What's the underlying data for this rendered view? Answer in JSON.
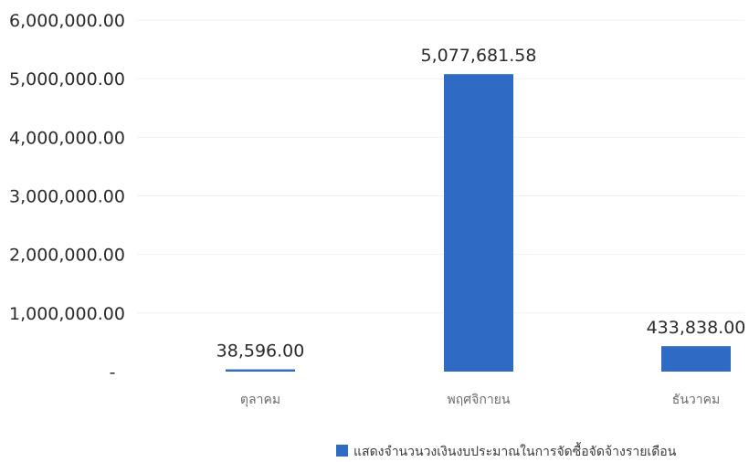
{
  "chart_data": {
    "type": "bar",
    "categories": [
      "ตุลาคม",
      "พฤศจิกายน",
      "ธันวาคม"
    ],
    "series": [
      {
        "name": "แสดงจำนวนวงเงินงบประมาณในการจัดซื้อจัดจ้างรายเดือน",
        "values": [
          38596.0,
          5077681.58,
          433838.0
        ],
        "value_labels": [
          "38,596.00",
          "5,077,681.58",
          "433,838.00"
        ]
      }
    ],
    "y_ticks": [
      "-",
      "1,000,000.00",
      "2,000,000.00",
      "3,000,000.00",
      "4,000,000.00",
      "5,000,000.00",
      "6,000,000.00"
    ],
    "ylim": [
      0,
      6000000
    ],
    "grid": true,
    "legend_position": "bottom-right",
    "title": "",
    "xlabel": "",
    "ylabel": "",
    "colors": {
      "bar": "#2f6bc4"
    }
  }
}
